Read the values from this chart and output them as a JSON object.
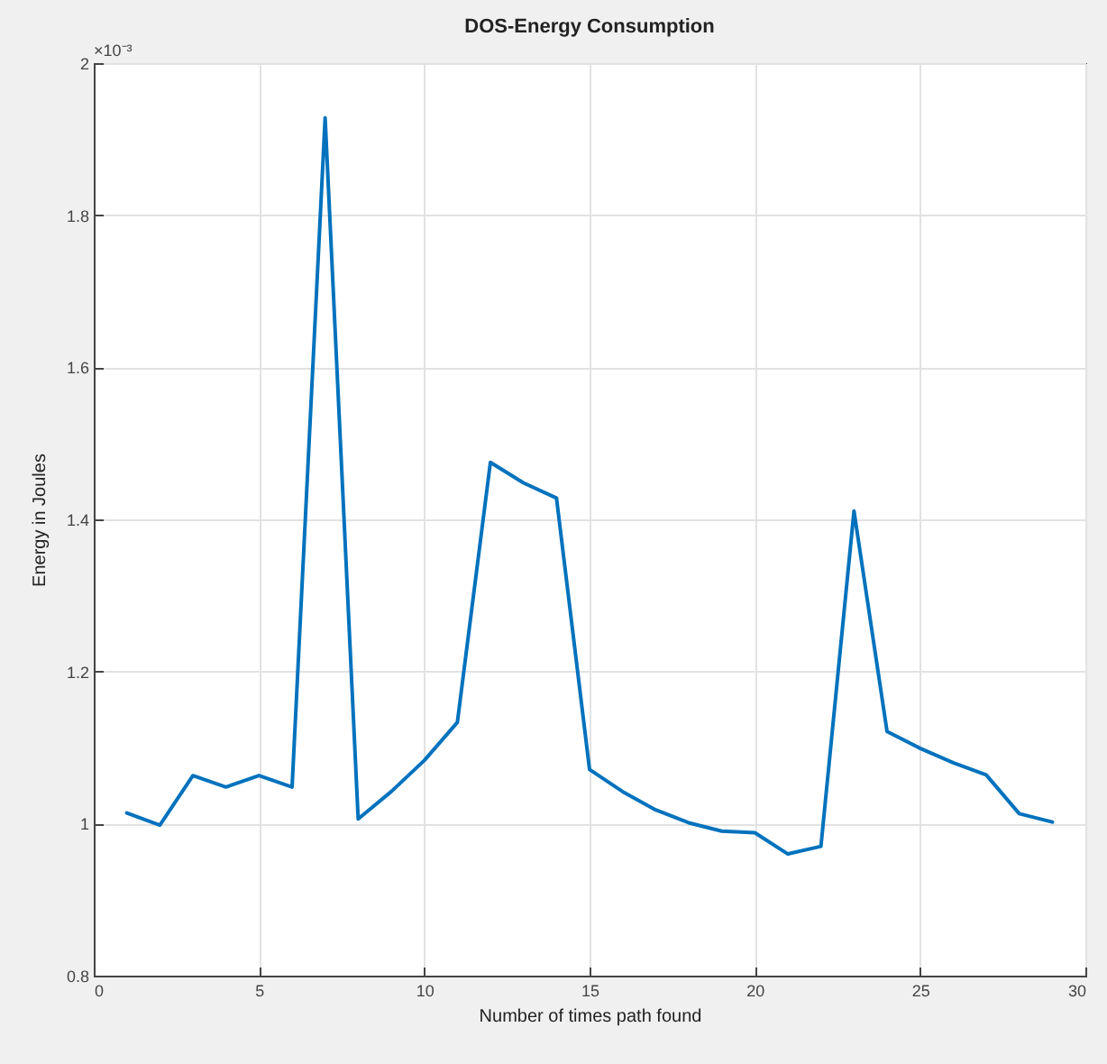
{
  "chart_data": {
    "type": "line",
    "title": "DOS-Energy Consumption",
    "xlabel": "Number of times path found",
    "ylabel": "Energy in Joules",
    "annotations": [
      "×10⁻³"
    ],
    "x": [
      1,
      2,
      3,
      4,
      5,
      6,
      7,
      8,
      9,
      10,
      11,
      12,
      13,
      14,
      15,
      16,
      17,
      18,
      19,
      20,
      21,
      22,
      23,
      24,
      25,
      26,
      27,
      28,
      29
    ],
    "series": [
      {
        "color": "#0072bd",
        "values": [
          1.014,
          0.998,
          1.063,
          1.048,
          1.063,
          1.048,
          1.928,
          1.006,
          1.042,
          1.083,
          1.133,
          1.475,
          1.448,
          1.428,
          1.071,
          1.042,
          1.018,
          1.001,
          0.99,
          0.988,
          0.96,
          0.97,
          1.411,
          1.121,
          1.099,
          1.08,
          1.064,
          1.013,
          1.002
        ]
      }
    ],
    "xlim": [
      0,
      30
    ],
    "xticks": [
      0,
      5,
      10,
      15,
      20,
      25,
      30
    ],
    "ylim": [
      0.8,
      2
    ],
    "yticks": [
      0.8,
      1,
      1.2,
      1.4,
      1.6,
      1.8,
      2
    ],
    "grid": true,
    "marker": "none",
    "line_style": "solid"
  }
}
